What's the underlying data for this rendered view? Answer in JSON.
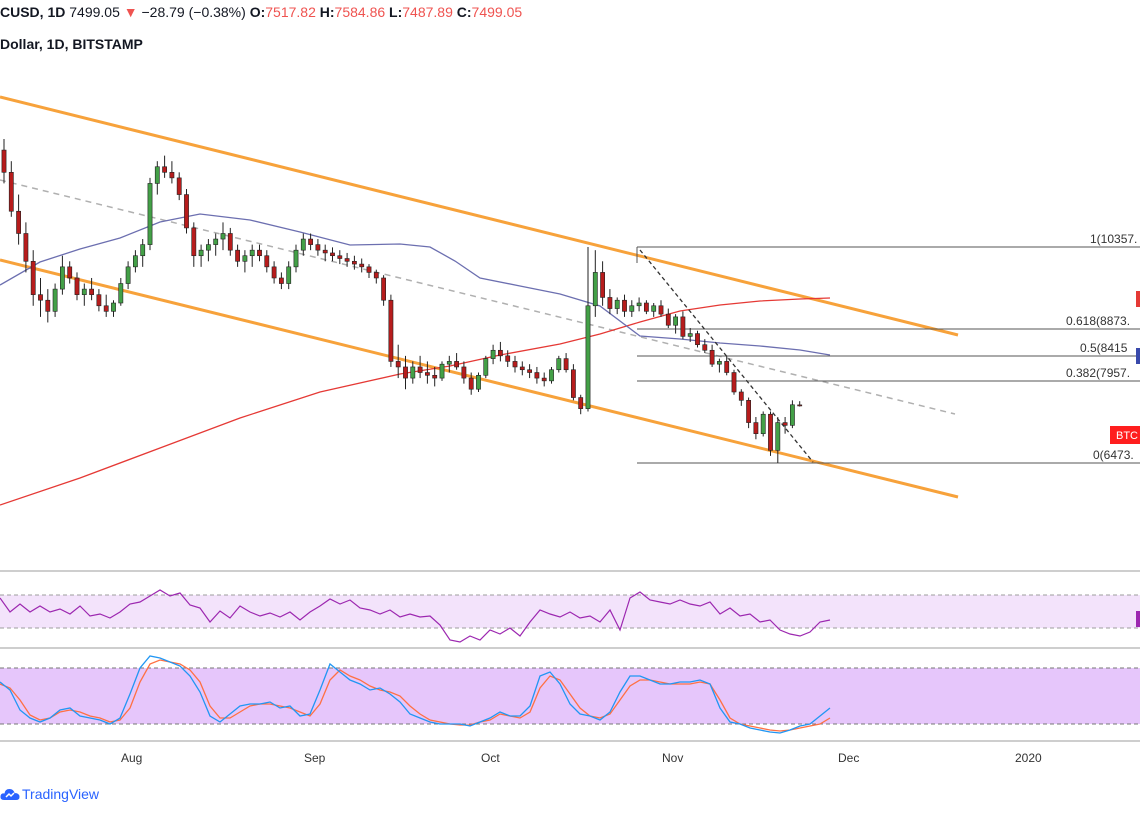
{
  "header": {
    "symbol": "CUSD",
    "interval": "1D",
    "price": "7499.05",
    "change_arrow": "▼",
    "change": "−28.79 (−0.38%)",
    "open_label": "O:",
    "open": "7517.82",
    "high_label": "H:",
    "high": "7584.86",
    "low_label": "L:",
    "low": "7487.89",
    "close_label": "C:",
    "close": "7499.05"
  },
  "subtitle": "Dollar, 1D, BITSTAMP",
  "brand": "TradingView",
  "colors": {
    "up": "#26a69a",
    "down": "#ef5350",
    "up_candle": "#43a047",
    "down_candle": "#b71c1c",
    "channel": "#f7a23b",
    "ma_slow": "#e53935",
    "ma_fast": "#6c6fb0",
    "rsi": "#9c27b0",
    "stoch_k": "#2196f3",
    "stoch_d": "#ff7043",
    "rsi_band": "#f3e3fb",
    "stoch_band": "#e6c6fb"
  },
  "chart_data": {
    "type": "candlestick",
    "instrument": "BTC/USD",
    "exchange": "BITSTAMP",
    "interval": "1D",
    "x_tick_labels": [
      "Aug",
      "Sep",
      "Oct",
      "Nov",
      "Dec",
      "2020"
    ],
    "fibonacci": [
      {
        "level": "1",
        "label": "1(10357."
      },
      {
        "level": "0.618",
        "label": "0.618(8873."
      },
      {
        "level": "0.5",
        "label": "0.5(8415"
      },
      {
        "level": "0.382",
        "label": "0.382(7957."
      },
      {
        "level": "0",
        "label": "0(6473."
      }
    ],
    "price_tag": "BTC",
    "indicators": [
      "Moving Average (fast)",
      "Moving Average (slow)",
      "RSI",
      "Stochastic RSI"
    ],
    "candles_ohlc_approx": [
      [
        12100,
        12300,
        11500,
        11700
      ],
      [
        11700,
        11900,
        10900,
        11000
      ],
      [
        11000,
        11300,
        10400,
        10600
      ],
      [
        10600,
        10800,
        9900,
        10100
      ],
      [
        10100,
        10300,
        9300,
        9500
      ],
      [
        9500,
        9800,
        9100,
        9400
      ],
      [
        9400,
        9600,
        9000,
        9200
      ],
      [
        9200,
        9700,
        9100,
        9600
      ],
      [
        9600,
        10200,
        9500,
        10000
      ],
      [
        10000,
        10100,
        9700,
        9800
      ],
      [
        9800,
        9900,
        9400,
        9500
      ],
      [
        9500,
        9700,
        9300,
        9600
      ],
      [
        9600,
        9800,
        9400,
        9500
      ],
      [
        9500,
        9600,
        9200,
        9300
      ],
      [
        9300,
        9500,
        9100,
        9200
      ],
      [
        9200,
        9400,
        9100,
        9350
      ],
      [
        9350,
        9800,
        9300,
        9700
      ],
      [
        9700,
        10100,
        9600,
        10000
      ],
      [
        10000,
        10300,
        9900,
        10200
      ],
      [
        10200,
        10500,
        10000,
        10400
      ],
      [
        10400,
        11600,
        10300,
        11500
      ],
      [
        11500,
        11900,
        11300,
        11800
      ],
      [
        11800,
        12000,
        11600,
        11700
      ],
      [
        11700,
        11900,
        11500,
        11600
      ],
      [
        11600,
        11700,
        11200,
        11300
      ],
      [
        11300,
        11400,
        10600,
        10700
      ],
      [
        10700,
        10800,
        10000,
        10200
      ],
      [
        10200,
        10400,
        10000,
        10300
      ],
      [
        10300,
        10500,
        10100,
        10400
      ],
      [
        10400,
        10600,
        10200,
        10500
      ],
      [
        10500,
        10800,
        10300,
        10600
      ],
      [
        10600,
        10700,
        10200,
        10300
      ],
      [
        10300,
        10400,
        10000,
        10100
      ],
      [
        10100,
        10300,
        9900,
        10200
      ],
      [
        10200,
        10400,
        10000,
        10300
      ],
      [
        10300,
        10400,
        10100,
        10200
      ],
      [
        10200,
        10300,
        9900,
        10000
      ],
      [
        10000,
        10100,
        9700,
        9800
      ],
      [
        9800,
        9900,
        9600,
        9700
      ],
      [
        9700,
        10100,
        9600,
        10000
      ],
      [
        10000,
        10400,
        9900,
        10300
      ],
      [
        10300,
        10600,
        10200,
        10500
      ],
      [
        10500,
        10600,
        10300,
        10400
      ],
      [
        10400,
        10500,
        10200,
        10300
      ],
      [
        10300,
        10400,
        10100,
        10250
      ],
      [
        10250,
        10350,
        10100,
        10200
      ],
      [
        10200,
        10300,
        10050,
        10150
      ],
      [
        10150,
        10250,
        10000,
        10100
      ],
      [
        10100,
        10200,
        9950,
        10050
      ],
      [
        10050,
        10150,
        9900,
        10000
      ],
      [
        10000,
        10050,
        9800,
        9900
      ],
      [
        9900,
        9950,
        9700,
        9800
      ],
      [
        9800,
        9850,
        9300,
        9400
      ],
      [
        9400,
        9500,
        8200,
        8300
      ],
      [
        8300,
        8600,
        8000,
        8200
      ],
      [
        8200,
        8400,
        7800,
        8000
      ],
      [
        8000,
        8300,
        7900,
        8200
      ],
      [
        8200,
        8400,
        8000,
        8100
      ],
      [
        8100,
        8300,
        7900,
        8050
      ],
      [
        8050,
        8200,
        7850,
        8000
      ],
      [
        8000,
        8300,
        7950,
        8250
      ],
      [
        8250,
        8400,
        8100,
        8300
      ],
      [
        8300,
        8450,
        8150,
        8200
      ],
      [
        8200,
        8300,
        7900,
        8000
      ],
      [
        8000,
        8100,
        7700,
        7800
      ],
      [
        7800,
        8100,
        7750,
        8050
      ],
      [
        8050,
        8400,
        8000,
        8350
      ],
      [
        8350,
        8600,
        8250,
        8500
      ],
      [
        8500,
        8650,
        8300,
        8400
      ],
      [
        8400,
        8500,
        8200,
        8300
      ],
      [
        8300,
        8400,
        8100,
        8200
      ],
      [
        8200,
        8300,
        8050,
        8150
      ],
      [
        8150,
        8250,
        8000,
        8100
      ],
      [
        8100,
        8200,
        7900,
        8000
      ],
      [
        8000,
        8100,
        7850,
        7950
      ],
      [
        7950,
        8200,
        7900,
        8150
      ],
      [
        8150,
        8400,
        8100,
        8350
      ],
      [
        8350,
        8450,
        8100,
        8150
      ],
      [
        8150,
        8250,
        7600,
        7650
      ],
      [
        7650,
        7700,
        7350,
        7450
      ],
      [
        7450,
        10357,
        7400,
        9300
      ],
      [
        9300,
        10300,
        9100,
        9900
      ],
      [
        9900,
        10100,
        9300,
        9450
      ],
      [
        9450,
        9600,
        9150,
        9250
      ],
      [
        9250,
        9450,
        9150,
        9400
      ],
      [
        9400,
        9500,
        9100,
        9200
      ],
      [
        9200,
        9400,
        9100,
        9300
      ],
      [
        9300,
        9450,
        9200,
        9350
      ],
      [
        9350,
        9400,
        9150,
        9200
      ],
      [
        9200,
        9350,
        9100,
        9300
      ],
      [
        9300,
        9400,
        9100,
        9150
      ],
      [
        9150,
        9250,
        8900,
        8950
      ],
      [
        8950,
        9150,
        8800,
        9100
      ],
      [
        9100,
        9200,
        8700,
        8750
      ],
      [
        8750,
        8900,
        8650,
        8800
      ],
      [
        8800,
        8850,
        8550,
        8600
      ],
      [
        8600,
        8700,
        8450,
        8500
      ],
      [
        8500,
        8600,
        8200,
        8250
      ],
      [
        8250,
        8350,
        8100,
        8300
      ],
      [
        8300,
        8400,
        8050,
        8100
      ],
      [
        8100,
        8150,
        7700,
        7750
      ],
      [
        7750,
        7800,
        7500,
        7600
      ],
      [
        7600,
        7650,
        7100,
        7200
      ],
      [
        7200,
        7300,
        6900,
        7000
      ],
      [
        7000,
        7400,
        6950,
        7350
      ],
      [
        7350,
        7400,
        6600,
        6700
      ],
      [
        6700,
        7300,
        6473,
        7200
      ],
      [
        7200,
        7300,
        7000,
        7150
      ],
      [
        7150,
        7600,
        7100,
        7520
      ],
      [
        7517.82,
        7584.86,
        7487.89,
        7499.05
      ]
    ]
  }
}
